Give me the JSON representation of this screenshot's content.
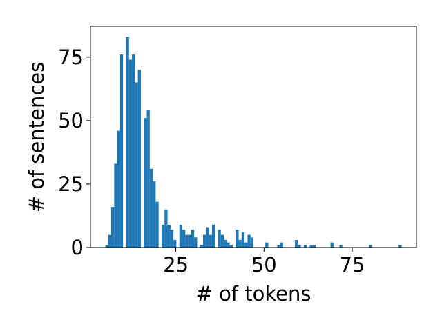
{
  "chart_data": {
    "type": "histogram",
    "xlabel": "# of tokens",
    "ylabel": "# of sentences",
    "color": "#1f77b4",
    "bins": [
      5,
      5.84,
      6.68,
      7.52,
      8.36,
      9.2,
      10.04,
      10.88,
      11.72,
      12.56,
      13.4,
      14.24,
      15.08,
      15.92,
      16.76,
      17.6,
      18.44,
      19.28,
      20.12,
      20.96,
      21.8,
      22.64,
      23.48,
      24.32,
      25.16,
      26,
      26.84,
      27.68,
      28.52,
      29.36,
      30.2,
      31.04,
      31.88,
      32.72,
      33.56,
      34.4,
      35.24,
      36.08,
      36.92,
      37.76,
      38.6,
      39.44,
      40.28,
      41.12,
      41.96,
      42.8,
      43.64,
      44.48,
      45.32,
      46.16,
      47,
      47.84,
      48.68,
      49.52,
      50.36,
      51.2,
      52.04,
      52.88,
      53.72,
      54.56,
      55.4,
      56.24,
      57.08,
      57.92,
      58.76,
      59.6,
      60.44,
      61.28,
      62.12,
      62.96,
      63.8,
      64.64,
      65.48,
      66.32,
      67.16,
      68,
      68.84,
      69.68,
      70.52,
      71.36,
      72.2,
      73.04,
      73.88,
      74.72,
      75.56,
      76.4,
      77.24,
      78.08,
      78.92,
      79.76,
      80.6,
      81.44,
      82.28,
      83.12,
      83.96,
      84.8,
      85.64,
      86.48,
      87.32,
      88.16,
      89
    ],
    "counts": [
      1,
      5,
      16,
      33,
      46,
      76,
      0,
      83,
      74,
      76,
      65,
      70,
      0,
      51,
      54,
      31,
      26,
      18,
      0,
      9,
      15,
      9,
      7,
      3,
      0,
      9,
      7,
      5,
      5,
      7,
      4,
      0,
      1,
      5,
      8,
      5,
      9,
      0,
      7,
      5,
      3,
      2,
      1,
      0,
      7,
      3,
      6,
      2,
      5,
      4,
      0,
      0,
      0,
      0,
      2,
      0,
      0,
      0,
      1,
      2,
      0,
      0,
      0,
      0,
      3,
      1,
      0,
      1,
      0,
      1,
      1,
      0,
      0,
      0,
      0,
      0,
      2,
      0,
      0,
      1,
      0,
      0,
      0,
      0,
      0,
      0,
      0,
      0,
      0,
      1,
      0,
      0,
      0,
      0,
      0,
      0,
      0,
      0,
      0,
      1
    ],
    "xlim": [
      0.8,
      93.2
    ],
    "xticks": [
      25,
      50,
      75
    ],
    "ylim": [
      0,
      87.15
    ],
    "yticks": [
      0,
      25,
      50,
      75
    ]
  }
}
